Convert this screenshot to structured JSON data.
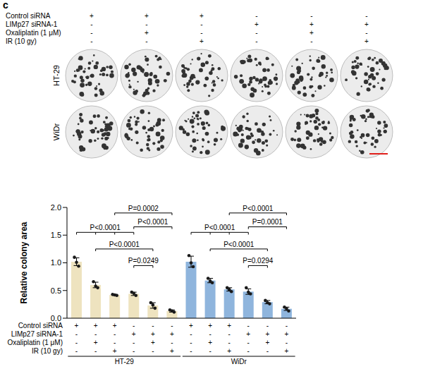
{
  "panel": "c",
  "conditions": [
    {
      "label": "Control siRNA",
      "marks": [
        "+",
        "+",
        "+",
        "-",
        "-",
        "-"
      ]
    },
    {
      "label": "LIMp27 siRNA-1",
      "marks": [
        "-",
        "-",
        "-",
        "+",
        "+",
        "+"
      ]
    },
    {
      "label": "Oxaliplatin (1 μM)",
      "marks": [
        "-",
        "+",
        "-",
        "-",
        "+",
        "-"
      ]
    },
    {
      "label": "IR (10 gy)",
      "marks": [
        "-",
        "-",
        "+",
        "-",
        "-",
        "+"
      ]
    }
  ],
  "image_rows": [
    "HT-29",
    "WiDr"
  ],
  "chart_data": {
    "type": "bar",
    "y_label": "Relative colony area",
    "categories": [
      null,
      null,
      null,
      null,
      null,
      null,
      null,
      null,
      null,
      null,
      null,
      null
    ],
    "values": [
      1.02,
      0.6,
      0.42,
      0.44,
      0.23,
      0.13,
      1.02,
      0.68,
      0.52,
      0.48,
      0.29,
      0.17
    ],
    "errors": [
      0.07,
      0.05,
      0.01,
      0.03,
      0.05,
      0.02,
      0.1,
      0.04,
      0.03,
      0.05,
      0.03,
      0.03
    ],
    "points": [
      [
        1.1,
        1.01,
        0.94
      ],
      [
        0.66,
        0.58,
        0.55
      ],
      [
        0.43,
        0.42,
        0.41
      ],
      [
        0.47,
        0.45,
        0.41
      ],
      [
        0.28,
        0.24,
        0.18
      ],
      [
        0.15,
        0.13,
        0.11
      ],
      [
        1.13,
        1.0,
        0.93
      ],
      [
        0.72,
        0.67,
        0.64
      ],
      [
        0.55,
        0.52,
        0.48
      ],
      [
        0.55,
        0.47,
        0.44
      ],
      [
        0.32,
        0.28,
        0.26
      ],
      [
        0.2,
        0.17,
        0.13
      ]
    ],
    "colors": [
      "#eee3bf",
      "#eee3bf",
      "#eee3bf",
      "#eee3bf",
      "#eee3bf",
      "#eee3bf",
      "#8fb5dd",
      "#8fb5dd",
      "#8fb5dd",
      "#8fb5dd",
      "#8fb5dd",
      "#8fb5dd"
    ],
    "ylim": [
      0,
      2
    ],
    "yticks": [
      {
        "value": 0,
        "label": "0.0"
      },
      {
        "value": 0.5,
        "label": "0.5"
      },
      {
        "value": 1,
        "label": "1.0"
      },
      {
        "value": 1.5,
        "label": "1.5"
      },
      {
        "value": 2,
        "label": "2.0"
      }
    ],
    "groups": [
      {
        "label": "HT-29",
        "count": 6
      },
      {
        "label": "WiDr",
        "count": 6
      }
    ],
    "x_table": [
      {
        "label": "Control siRNA",
        "marks": [
          "+",
          "+",
          "+",
          "-",
          "-",
          "-",
          "+",
          "+",
          "+",
          "-",
          "-",
          "-"
        ]
      },
      {
        "label": "LIMp27 siRNA-1",
        "marks": [
          "-",
          "-",
          "-",
          "+",
          "+",
          "+",
          "-",
          "-",
          "-",
          "+",
          "+",
          "+"
        ]
      },
      {
        "label": "Oxaliplatin (1 μM)",
        "marks": [
          "-",
          "+",
          "-",
          "-",
          "+",
          "-",
          "-",
          "+",
          "-",
          "-",
          "+",
          "-"
        ]
      },
      {
        "label": "IR (10 gy)",
        "marks": [
          "-",
          "-",
          "+",
          "-",
          "-",
          "+",
          "-",
          "-",
          "+",
          "-",
          "-",
          "+"
        ]
      }
    ],
    "annotations": [
      {
        "label": "P<0.0001",
        "from": 0,
        "to": [
          1,
          2,
          3
        ],
        "y": 1.55
      },
      {
        "label": "P=0.0002",
        "from": 2,
        "to": [
          5
        ],
        "y": 1.9
      },
      {
        "label": "P<0.0001",
        "from": 3,
        "to": [
          5
        ],
        "y": 1.65
      },
      {
        "label": "P<0.0001",
        "from": 1,
        "to": [
          4
        ],
        "y": 1.25
      },
      {
        "label": "P=0.0249",
        "from": 3,
        "to": [
          4
        ],
        "y": 0.95
      },
      {
        "label": "P<0.0001",
        "from": 6,
        "to": [
          7,
          8,
          9
        ],
        "y": 1.55
      },
      {
        "label": "P<0.0001",
        "from": 8,
        "to": [
          11
        ],
        "y": 1.9
      },
      {
        "label": "P=0.0001",
        "from": 9,
        "to": [
          11
        ],
        "y": 1.65
      },
      {
        "label": "P<0.0001",
        "from": 7,
        "to": [
          10
        ],
        "y": 1.25
      },
      {
        "label": "P=0.0294",
        "from": 9,
        "to": [
          10
        ],
        "y": 0.95
      }
    ]
  }
}
